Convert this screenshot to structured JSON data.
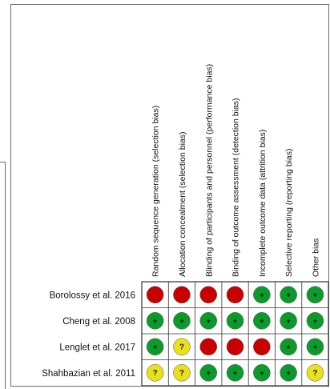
{
  "chart_data": {
    "type": "table",
    "domains": [
      "Random sequence generation (selection bias)",
      "Allocation concealment (selection bias)",
      "Blinding of participants and personnel (performance bias)",
      "Binding of outcome assessment (detection bias)",
      "Incomplete outcome data (attrition bias)",
      "Selective reporting (reporting bias)",
      "Other bias"
    ],
    "studies": [
      {
        "name": "Borolossy et al. 2016",
        "judgements": [
          "high",
          "high",
          "high",
          "high",
          "low",
          "low",
          "low"
        ]
      },
      {
        "name": "Cheng et al. 2008",
        "judgements": [
          "low",
          "low",
          "low",
          "low",
          "low",
          "low",
          "low"
        ]
      },
      {
        "name": "Lenglet et al. 2017",
        "judgements": [
          "low",
          "unclear",
          "high",
          "high",
          "high",
          "low",
          "low"
        ]
      },
      {
        "name": "Shahbazian et al. 2011",
        "judgements": [
          "unclear",
          "unclear",
          "low",
          "low",
          "low",
          "low",
          "unclear"
        ]
      }
    ],
    "symbols": {
      "low": "+",
      "high": "-",
      "unclear": "?"
    },
    "colors": {
      "low": "#0c9a2c",
      "high": "#c80000",
      "unclear": "#e8e01a",
      "cell_bg": "#ffffff",
      "border": "#333333"
    }
  }
}
